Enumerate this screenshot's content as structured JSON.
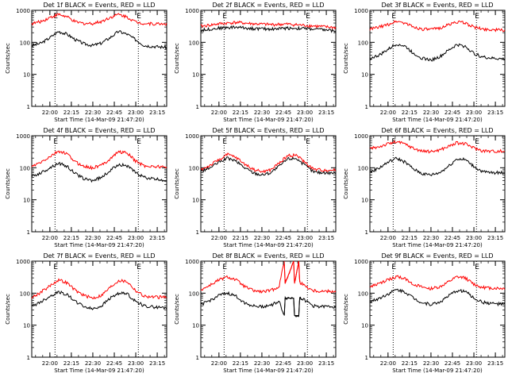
{
  "colors": {
    "events": "#000000",
    "lld": "#ff0000",
    "axis": "#000000",
    "marker": "#000000"
  },
  "chart_data": [
    {
      "type": "line",
      "title": "Det 1f BLACK = Events, RED = LLD",
      "xlabel": "Start Time (14-Mar-09 21:47:20)",
      "ylabel": "Counts/sec",
      "yscale": "log",
      "ylim": [
        1,
        1000
      ],
      "ytick_labels": [
        "1",
        "10",
        "100",
        "1000"
      ],
      "x_tick_labels": [
        "22:00",
        "22:15",
        "22:30",
        "22:45",
        "23:00",
        "23:15"
      ],
      "x_ticks_hours": [
        22.0,
        22.25,
        22.5,
        22.75,
        23.0,
        23.25
      ],
      "xlim_hours": [
        21.789,
        23.36
      ],
      "saa_marker_hours": [
        22.06,
        23.03
      ],
      "corner_labels": [
        "E",
        "E"
      ],
      "series": [
        {
          "name": "Events",
          "x_hours": [
            21.8,
            21.9,
            22.0,
            22.1,
            22.2,
            22.3,
            22.4,
            22.5,
            22.6,
            22.7,
            22.8,
            22.9,
            23.0,
            23.1,
            23.2,
            23.35
          ],
          "values": [
            80,
            95,
            140,
            220,
            180,
            120,
            90,
            80,
            95,
            140,
            220,
            180,
            120,
            80,
            75,
            70
          ]
        },
        {
          "name": "LLD",
          "x_hours": [
            21.8,
            21.9,
            22.0,
            22.1,
            22.2,
            22.3,
            22.4,
            22.5,
            22.6,
            22.7,
            22.8,
            22.9,
            23.0,
            23.1,
            23.2,
            23.35
          ],
          "values": [
            390,
            450,
            600,
            750,
            620,
            430,
            390,
            390,
            450,
            600,
            750,
            620,
            430,
            390,
            380,
            380
          ]
        }
      ]
    },
    {
      "type": "line",
      "title": "Det 2f BLACK = Events, RED = LLD",
      "xlabel": "Start Time (14-Mar-09 21:47:20)",
      "ylabel": "Counts/sec",
      "yscale": "log",
      "ylim": [
        1,
        1000
      ],
      "ytick_labels": [
        "1",
        "10",
        "100",
        "1000"
      ],
      "x_tick_labels": [
        "22:00",
        "22:15",
        "22:30",
        "22:45",
        "23:00",
        "23:15"
      ],
      "x_ticks_hours": [
        22.0,
        22.25,
        22.5,
        22.75,
        23.0,
        23.25
      ],
      "xlim_hours": [
        21.789,
        23.36
      ],
      "saa_marker_hours": [
        22.06,
        23.03
      ],
      "corner_labels": [
        "E",
        "E"
      ],
      "series": [
        {
          "name": "Events",
          "x_hours": [
            21.8,
            22.0,
            22.2,
            22.4,
            22.6,
            22.8,
            23.0,
            23.2,
            23.35
          ],
          "values": [
            240,
            280,
            300,
            270,
            260,
            280,
            270,
            250,
            230
          ]
        },
        {
          "name": "LLD",
          "x_hours": [
            21.8,
            22.0,
            22.2,
            22.4,
            22.6,
            22.8,
            23.0,
            23.2,
            23.35
          ],
          "values": [
            320,
            380,
            420,
            380,
            360,
            370,
            340,
            310,
            290
          ]
        }
      ]
    },
    {
      "type": "line",
      "title": "Det 3f BLACK = Events, RED = LLD",
      "xlabel": "Start Time (14-Mar-09 21:47:20)",
      "ylabel": "Counts/sec",
      "yscale": "log",
      "ylim": [
        1,
        1000
      ],
      "ytick_labels": [
        "1",
        "10",
        "100",
        "1000"
      ],
      "x_tick_labels": [
        "22:00",
        "22:15",
        "22:30",
        "22:45",
        "23:00",
        "23:15"
      ],
      "x_ticks_hours": [
        22.0,
        22.25,
        22.5,
        22.75,
        23.0,
        23.25
      ],
      "xlim_hours": [
        21.789,
        23.36
      ],
      "saa_marker_hours": [
        22.06,
        23.03
      ],
      "corner_labels": [
        "E",
        "E"
      ],
      "series": [
        {
          "name": "Events",
          "x_hours": [
            21.8,
            21.9,
            22.0,
            22.1,
            22.2,
            22.3,
            22.4,
            22.5,
            22.6,
            22.7,
            22.8,
            22.9,
            23.0,
            23.1,
            23.2,
            23.35
          ],
          "values": [
            32,
            40,
            60,
            90,
            75,
            45,
            32,
            28,
            35,
            55,
            85,
            75,
            45,
            35,
            32,
            30
          ]
        },
        {
          "name": "LLD",
          "x_hours": [
            21.8,
            21.9,
            22.0,
            22.1,
            22.2,
            22.3,
            22.4,
            22.5,
            22.6,
            22.7,
            22.8,
            22.9,
            23.0,
            23.1,
            23.2,
            23.35
          ],
          "values": [
            260,
            300,
            360,
            460,
            400,
            300,
            260,
            250,
            280,
            350,
            440,
            400,
            300,
            260,
            250,
            240
          ]
        }
      ]
    },
    {
      "type": "line",
      "title": "Det 4f BLACK = Events, RED = LLD",
      "xlabel": "Start Time (14-Mar-09 21:47:20)",
      "ylabel": "Counts/sec",
      "yscale": "log",
      "ylim": [
        1,
        1000
      ],
      "ytick_labels": [
        "1",
        "10",
        "100",
        "1000"
      ],
      "x_tick_labels": [
        "22:00",
        "22:15",
        "22:30",
        "22:45",
        "23:00",
        "23:15"
      ],
      "x_ticks_hours": [
        22.0,
        22.25,
        22.5,
        22.75,
        23.0,
        23.25
      ],
      "xlim_hours": [
        21.789,
        23.36
      ],
      "saa_marker_hours": [
        22.06,
        23.03
      ],
      "corner_labels": [
        "E",
        "E"
      ],
      "series": [
        {
          "name": "Events",
          "x_hours": [
            21.8,
            21.9,
            22.0,
            22.1,
            22.2,
            22.3,
            22.4,
            22.5,
            22.6,
            22.7,
            22.8,
            22.9,
            23.0,
            23.1,
            23.2,
            23.35
          ],
          "values": [
            55,
            70,
            100,
            140,
            110,
            65,
            45,
            40,
            50,
            80,
            130,
            115,
            70,
            50,
            45,
            40
          ]
        },
        {
          "name": "LLD",
          "x_hours": [
            21.8,
            21.9,
            22.0,
            22.1,
            22.2,
            22.3,
            22.4,
            22.5,
            22.6,
            22.7,
            22.8,
            22.9,
            23.0,
            23.1,
            23.2,
            23.35
          ],
          "values": [
            110,
            150,
            220,
            330,
            270,
            150,
            110,
            100,
            120,
            190,
            320,
            290,
            160,
            115,
            110,
            105
          ]
        }
      ]
    },
    {
      "type": "line",
      "title": "Det 5f BLACK = Events, RED = LLD",
      "xlabel": "Start Time (14-Mar-09 21:47:20)",
      "ylabel": "Counts/sec",
      "yscale": "log",
      "ylim": [
        1,
        1000
      ],
      "ytick_labels": [
        "1",
        "10",
        "100",
        "1000"
      ],
      "x_tick_labels": [
        "22:00",
        "22:15",
        "22:30",
        "22:45",
        "23:00",
        "23:15"
      ],
      "x_ticks_hours": [
        22.0,
        22.25,
        22.5,
        22.75,
        23.0,
        23.25
      ],
      "xlim_hours": [
        21.789,
        23.36
      ],
      "saa_marker_hours": [
        22.06,
        23.03
      ],
      "corner_labels": [
        "E",
        "E"
      ],
      "series": [
        {
          "name": "Events",
          "x_hours": [
            21.8,
            21.9,
            22.0,
            22.1,
            22.2,
            22.3,
            22.4,
            22.5,
            22.6,
            22.7,
            22.8,
            22.9,
            23.0,
            23.1,
            23.2,
            23.35
          ],
          "values": [
            80,
            100,
            150,
            200,
            160,
            100,
            70,
            60,
            70,
            110,
            190,
            200,
            120,
            75,
            70,
            70
          ]
        },
        {
          "name": "LLD",
          "x_hours": [
            21.8,
            21.9,
            22.0,
            22.1,
            22.2,
            22.3,
            22.4,
            22.5,
            22.6,
            22.7,
            22.8,
            22.9,
            23.0,
            23.1,
            23.2,
            23.35
          ],
          "values": [
            90,
            120,
            180,
            260,
            210,
            130,
            90,
            75,
            85,
            140,
            240,
            250,
            150,
            90,
            85,
            85
          ]
        }
      ]
    },
    {
      "type": "line",
      "title": "Det 6f BLACK = Events, RED = LLD",
      "xlabel": "Start Time (14-Mar-09 21:47:20)",
      "ylabel": "Counts/sec",
      "yscale": "log",
      "ylim": [
        1,
        1000
      ],
      "ytick_labels": [
        "1",
        "10",
        "100",
        "1000"
      ],
      "x_tick_labels": [
        "22:00",
        "22:15",
        "22:30",
        "22:45",
        "23:00",
        "23:15"
      ],
      "x_ticks_hours": [
        22.0,
        22.25,
        22.5,
        22.75,
        23.0,
        23.25
      ],
      "xlim_hours": [
        21.789,
        23.36
      ],
      "saa_marker_hours": [
        22.06,
        23.03
      ],
      "corner_labels": [
        "E",
        "E"
      ],
      "series": [
        {
          "name": "Events",
          "x_hours": [
            21.8,
            21.9,
            22.0,
            22.1,
            22.2,
            22.3,
            22.4,
            22.5,
            22.6,
            22.7,
            22.8,
            22.9,
            23.0,
            23.1,
            23.2,
            23.35
          ],
          "values": [
            75,
            100,
            150,
            200,
            150,
            90,
            65,
            60,
            70,
            110,
            190,
            180,
            110,
            75,
            70,
            70
          ]
        },
        {
          "name": "LLD",
          "x_hours": [
            21.8,
            21.9,
            22.0,
            22.1,
            22.2,
            22.3,
            22.4,
            22.5,
            22.6,
            22.7,
            22.8,
            22.9,
            23.0,
            23.1,
            23.2,
            23.35
          ],
          "values": [
            400,
            460,
            560,
            650,
            550,
            400,
            330,
            320,
            360,
            460,
            600,
            560,
            420,
            340,
            330,
            330
          ]
        }
      ]
    },
    {
      "type": "line",
      "title": "Det 7f BLACK = Events, RED = LLD",
      "xlabel": "Start Time (14-Mar-09 21:47:20)",
      "ylabel": "Counts/sec",
      "yscale": "log",
      "ylim": [
        1,
        1000
      ],
      "ytick_labels": [
        "1",
        "10",
        "100",
        "1000"
      ],
      "x_tick_labels": [
        "22:00",
        "22:15",
        "22:30",
        "22:45",
        "23:00",
        "23:15"
      ],
      "x_ticks_hours": [
        22.0,
        22.25,
        22.5,
        22.75,
        23.0,
        23.25
      ],
      "xlim_hours": [
        21.789,
        23.36
      ],
      "saa_marker_hours": [
        22.06,
        23.03
      ],
      "corner_labels": [
        "E",
        "E"
      ],
      "series": [
        {
          "name": "Events",
          "x_hours": [
            21.8,
            21.9,
            22.0,
            22.1,
            22.2,
            22.3,
            22.4,
            22.5,
            22.6,
            22.7,
            22.8,
            22.9,
            23.0,
            23.1,
            23.2,
            23.35
          ],
          "values": [
            40,
            55,
            80,
            110,
            90,
            55,
            38,
            32,
            40,
            70,
            100,
            95,
            55,
            40,
            37,
            35
          ]
        },
        {
          "name": "LLD",
          "x_hours": [
            21.8,
            21.9,
            22.0,
            22.1,
            22.2,
            22.3,
            22.4,
            22.5,
            22.6,
            22.7,
            22.8,
            22.9,
            23.0,
            23.1,
            23.2,
            23.35
          ],
          "values": [
            75,
            110,
            170,
            260,
            210,
            120,
            85,
            70,
            85,
            150,
            250,
            230,
            120,
            80,
            75,
            75
          ]
        }
      ]
    },
    {
      "type": "line",
      "title": "Det 8f BLACK = Events, RED = LLD",
      "xlabel": "Start Time (14-Mar-09 21:47:20)",
      "ylabel": "Counts/sec",
      "yscale": "log",
      "ylim": [
        1,
        1000
      ],
      "ytick_labels": [
        "1",
        "10",
        "100",
        "1000"
      ],
      "x_tick_labels": [
        "22:00",
        "22:15",
        "22:30",
        "22:45",
        "23:00",
        "23:15"
      ],
      "x_ticks_hours": [
        22.0,
        22.25,
        22.5,
        22.75,
        23.0,
        23.25
      ],
      "xlim_hours": [
        21.789,
        23.36
      ],
      "saa_marker_hours": [
        22.06,
        23.03
      ],
      "corner_labels": [
        "E",
        "E"
      ],
      "series": [
        {
          "name": "Events",
          "x_hours": [
            21.8,
            21.9,
            22.0,
            22.1,
            22.2,
            22.3,
            22.4,
            22.5,
            22.6,
            22.7,
            22.76,
            22.77,
            22.87,
            22.88,
            22.93,
            22.94,
            23.0,
            23.1,
            23.2,
            23.35
          ],
          "values": [
            45,
            60,
            85,
            100,
            80,
            50,
            40,
            38,
            42,
            55,
            20,
            70,
            70,
            20,
            20,
            75,
            60,
            40,
            38,
            38
          ]
        },
        {
          "name": "LLD",
          "x_hours": [
            21.8,
            21.9,
            22.0,
            22.1,
            22.2,
            22.3,
            22.4,
            22.5,
            22.6,
            22.7,
            22.76,
            22.77,
            22.87,
            22.88,
            22.93,
            22.94,
            23.0,
            23.1,
            23.2,
            23.35
          ],
          "values": [
            130,
            180,
            260,
            320,
            260,
            160,
            120,
            110,
            120,
            160,
            1000,
            200,
            1000,
            200,
            1000,
            220,
            170,
            120,
            115,
            115
          ]
        }
      ]
    },
    {
      "type": "line",
      "title": "Det 9f BLACK = Events, RED = LLD",
      "xlabel": "Start Time (14-Mar-09 21:47:20)",
      "ylabel": "Counts/sec",
      "yscale": "log",
      "ylim": [
        1,
        1000
      ],
      "ytick_labels": [
        "1",
        "10",
        "100",
        "1000"
      ],
      "x_tick_labels": [
        "22:00",
        "22:15",
        "22:30",
        "22:45",
        "23:00",
        "23:15"
      ],
      "x_ticks_hours": [
        22.0,
        22.25,
        22.5,
        22.75,
        23.0,
        23.25
      ],
      "xlim_hours": [
        21.789,
        23.36
      ],
      "saa_marker_hours": [
        22.06,
        23.03
      ],
      "corner_labels": [
        "E",
        "E"
      ],
      "series": [
        {
          "name": "Events",
          "x_hours": [
            21.8,
            21.9,
            22.0,
            22.1,
            22.2,
            22.3,
            22.4,
            22.5,
            22.6,
            22.7,
            22.8,
            22.9,
            23.0,
            23.1,
            23.2,
            23.35
          ],
          "values": [
            55,
            70,
            95,
            130,
            110,
            70,
            50,
            45,
            52,
            80,
            120,
            115,
            70,
            52,
            48,
            45
          ]
        },
        {
          "name": "LLD",
          "x_hours": [
            21.8,
            21.9,
            22.0,
            22.1,
            22.2,
            22.3,
            22.4,
            22.5,
            22.6,
            22.7,
            22.8,
            22.9,
            23.0,
            23.1,
            23.2,
            23.35
          ],
          "values": [
            160,
            200,
            260,
            330,
            280,
            190,
            150,
            140,
            155,
            220,
            320,
            300,
            190,
            150,
            145,
            140
          ]
        }
      ]
    }
  ]
}
